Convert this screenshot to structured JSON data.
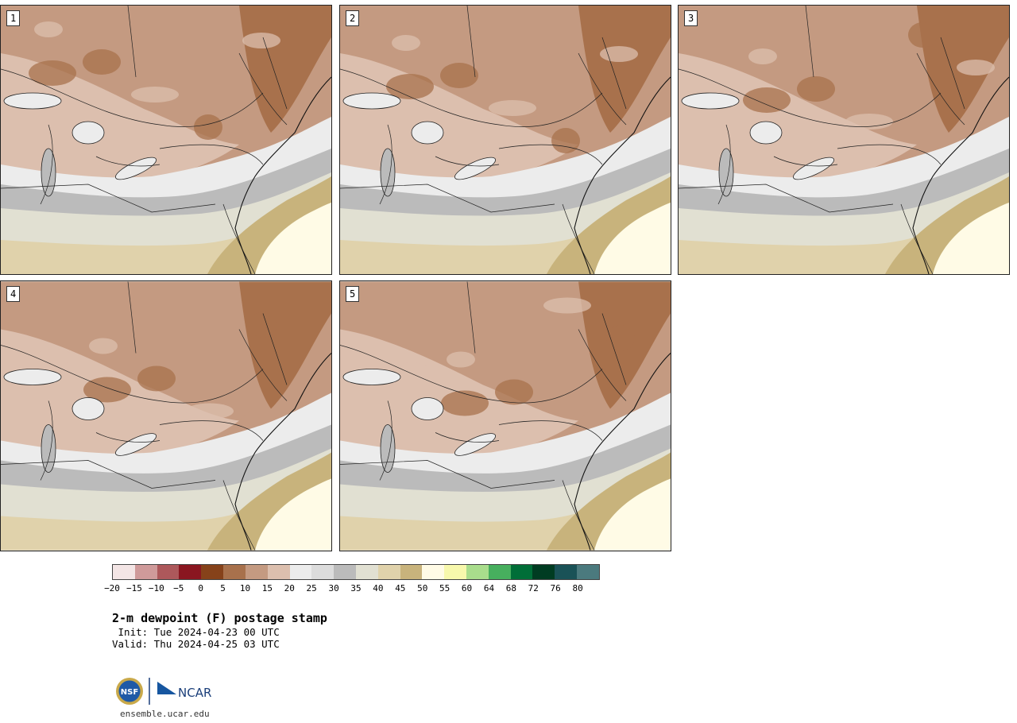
{
  "members": [
    {
      "label": "1",
      "id": "p1"
    },
    {
      "label": "2",
      "id": "p2"
    },
    {
      "label": "3",
      "id": "p3"
    },
    {
      "label": "4",
      "id": "p4"
    },
    {
      "label": "5",
      "id": "p5"
    }
  ],
  "colorbar": {
    "colors": [
      "#f3e5e5",
      "#cf9a9a",
      "#ad585b",
      "#8a1620",
      "#86421a",
      "#a8714c",
      "#c49a81",
      "#dcbfae",
      "#ececec",
      "#dcdcdc",
      "#bbbbbb",
      "#e1e0d2",
      "#e0d2ab",
      "#c8b37c",
      "#fffbe6",
      "#f7f8ac",
      "#a9dd8c",
      "#47af5e",
      "#006e38",
      "#003c22",
      "#1a5257",
      "#4b7a7e"
    ],
    "ticks": [
      "−20",
      "−15",
      "−10",
      "−5",
      "0",
      "5",
      "10",
      "15",
      "20",
      "25",
      "30",
      "35",
      "40",
      "45",
      "50",
      "55",
      "60",
      "64",
      "68",
      "72",
      "76",
      "80"
    ]
  },
  "title": {
    "main": "2-m dewpoint (F) postage stamp",
    "init": " Init: Tue 2024-04-23 00 UTC",
    "valid": "Valid: Thu 2024-04-25 03 UTC"
  },
  "logo": {
    "nsf_text": "NSF",
    "ncar_text": "NCAR"
  },
  "site": "ensemble.ucar.edu"
}
